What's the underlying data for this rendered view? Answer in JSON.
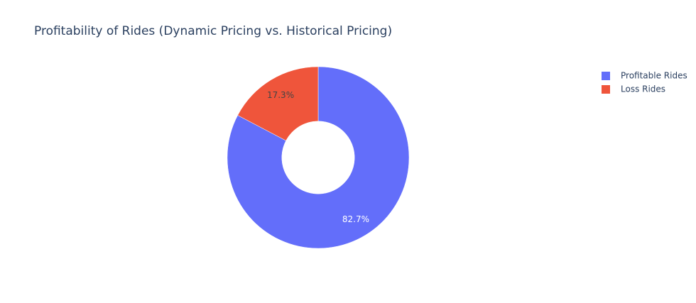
{
  "chart_data": {
    "type": "pie",
    "title": "Profitability of Rides (Dynamic Pricing vs. Historical Pricing)",
    "categories": [
      "Profitable Rides",
      "Loss Rides"
    ],
    "values": [
      82.7,
      17.3
    ],
    "value_labels": [
      "82.7%",
      "17.3%"
    ],
    "colors": [
      "#636efa",
      "#EF553B"
    ],
    "hole": 0.4,
    "legend": "top-right"
  }
}
